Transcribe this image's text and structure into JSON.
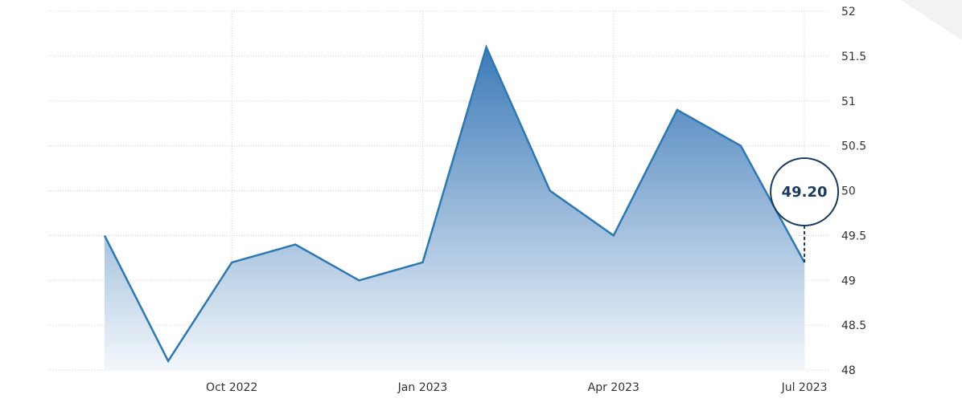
{
  "chart_data": {
    "type": "area",
    "title": "",
    "xlabel": "",
    "ylabel": "",
    "ylim": [
      48,
      52
    ],
    "y_ticks": [
      "48",
      "48.5",
      "49",
      "49.5",
      "50",
      "50.5",
      "51",
      "51.5",
      "52"
    ],
    "y_tick_values": [
      48,
      48.5,
      49,
      49.5,
      50,
      50.5,
      51,
      51.5,
      52
    ],
    "x_ticks": [
      "Oct 2022",
      "Jan 2023",
      "Apr 2023",
      "Jul 2023"
    ],
    "x_tick_months": [
      2022.75,
      2023.0,
      2023.25,
      2023.5
    ],
    "x": [
      "2022-08",
      "2022-09",
      "2022-10",
      "2022-11",
      "2022-12",
      "2023-01",
      "2023-02",
      "2023-03",
      "2023-04",
      "2023-05",
      "2023-06",
      "2023-07"
    ],
    "values": [
      49.5,
      48.1,
      49.2,
      49.4,
      49.0,
      49.2,
      51.6,
      50.0,
      49.5,
      50.9,
      50.5,
      49.2
    ],
    "grid": true,
    "y_axis_position": "right",
    "last_value_label": "49.20",
    "colors": {
      "line": "#2e78b0",
      "fill_top": "#3d7ab8",
      "fill_bottom": "#f3f7fb",
      "callout": "#1a3a5c",
      "grid": "#d0d0d0"
    }
  }
}
